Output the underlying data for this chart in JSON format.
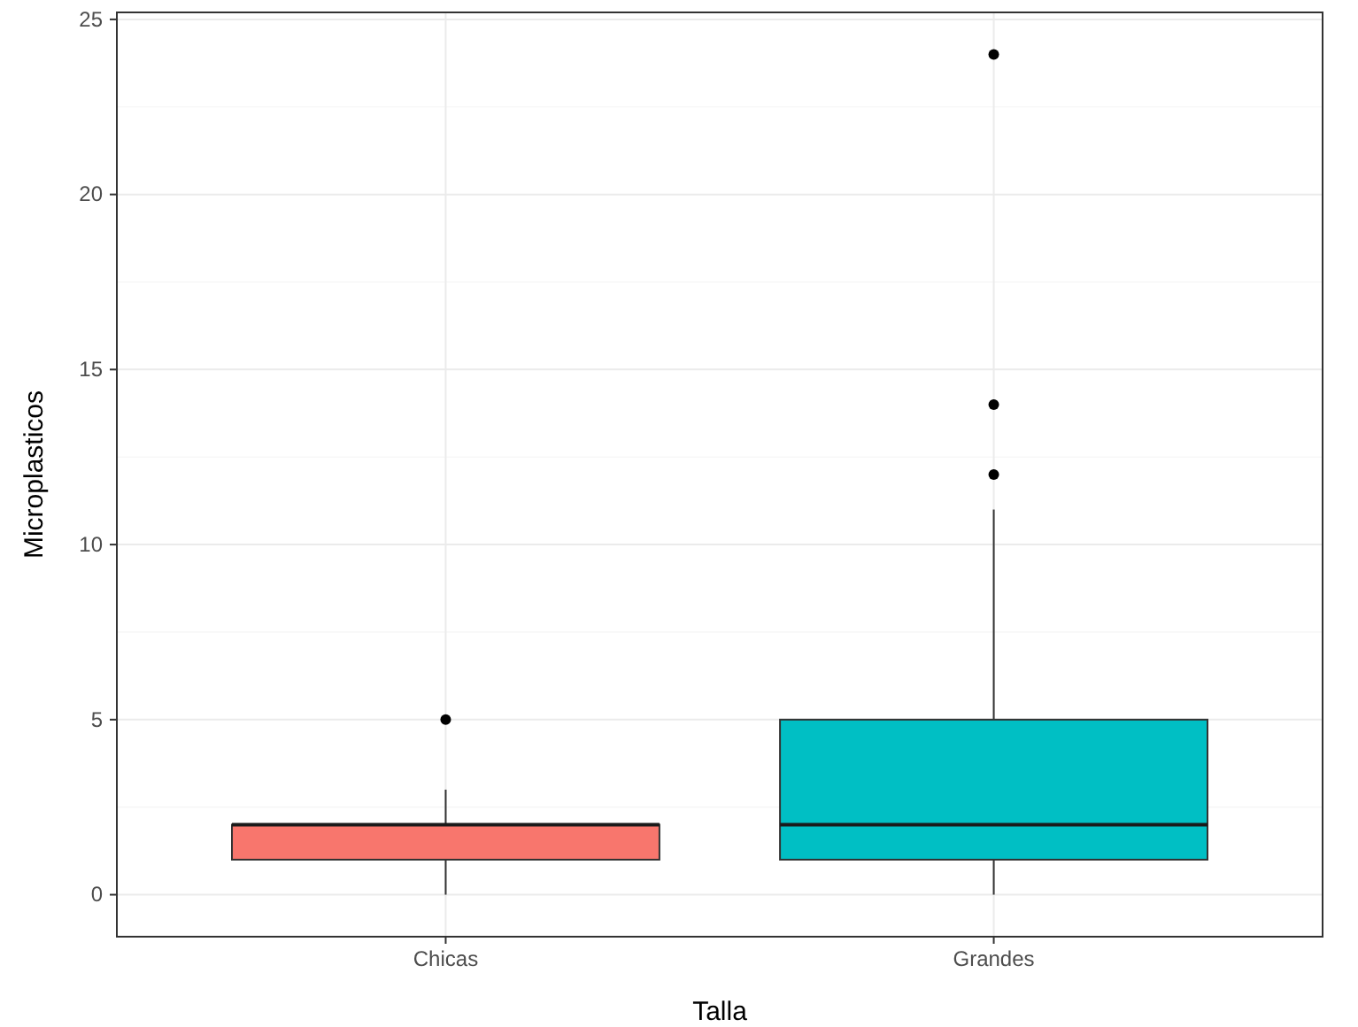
{
  "chart_data": {
    "type": "box",
    "xlabel": "Talla",
    "ylabel": "Microplasticos",
    "categories": [
      "Chicas",
      "Grandes"
    ],
    "series": [
      {
        "colors": [
          "#f8766d",
          "#00bfc4"
        ],
        "boxes": [
          {
            "low": 0,
            "q1": 1,
            "median": 2,
            "q3": 2,
            "high": 3,
            "outliers": [
              5
            ]
          },
          {
            "low": 0,
            "q1": 1,
            "median": 2,
            "q3": 5,
            "high": 11,
            "outliers": [
              12,
              14,
              24
            ]
          }
        ]
      }
    ],
    "ylim": [
      -1.2,
      25.2
    ],
    "yticks": [
      0,
      5,
      10,
      15,
      20,
      25
    ],
    "grid": true
  }
}
